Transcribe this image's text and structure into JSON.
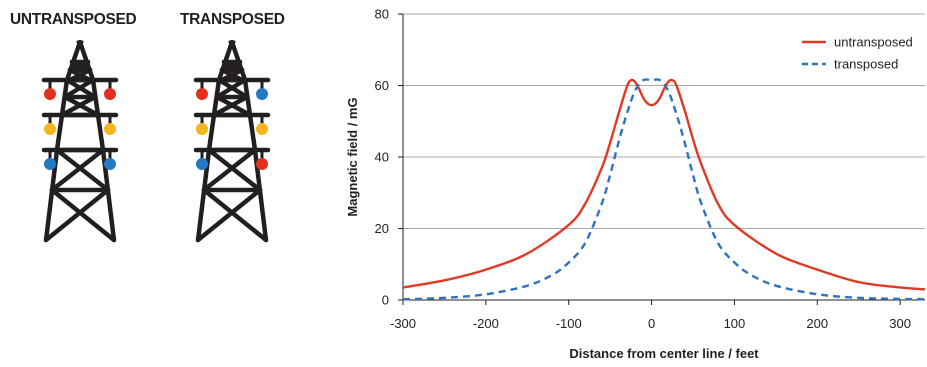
{
  "towers": [
    {
      "title": "UNTRANSPOSED",
      "left": [
        "red",
        "yellow",
        "blue"
      ],
      "right": [
        "red",
        "yellow",
        "blue"
      ]
    },
    {
      "title": "TRANSPOSED",
      "left": [
        "red",
        "yellow",
        "blue"
      ],
      "right": [
        "blue",
        "yellow",
        "red"
      ]
    }
  ],
  "colors": {
    "red": "#e0311f",
    "yellow": "#f5b51b",
    "blue": "#2379c2",
    "tower": "#231f20",
    "untransposed_line": "#e03a24",
    "transposed_line": "#2f72c2",
    "grid": "#a9a9a9"
  },
  "chart_data": {
    "type": "line",
    "xlabel": "Distance from center line / feet",
    "ylabel": "Magnetic field / mG",
    "xlim": [
      -300,
      330
    ],
    "ylim": [
      0,
      80
    ],
    "xticks": [
      -300,
      -200,
      -100,
      0,
      100,
      200,
      300
    ],
    "yticks": [
      0,
      20,
      40,
      60,
      80
    ],
    "grid": "horizontal",
    "legend_position": "top-right",
    "series": [
      {
        "name": "untransposed",
        "style": "solid",
        "x": [
          -300,
          -250,
          -200,
          -150,
          -100,
          -80,
          -60,
          -50,
          -40,
          -30,
          -25,
          -20,
          -15,
          -10,
          -5,
          0,
          5,
          10,
          15,
          20,
          25,
          30,
          40,
          50,
          60,
          80,
          100,
          150,
          200,
          250,
          300,
          330
        ],
        "y": [
          3.5,
          5.5,
          8.5,
          13,
          21,
          27,
          37,
          44,
          52,
          59.5,
          61.5,
          61,
          59,
          56.5,
          55,
          54.5,
          55,
          56.5,
          59,
          61,
          61.5,
          60,
          53,
          45,
          38,
          27,
          21,
          13,
          8.5,
          5,
          3.5,
          3
        ]
      },
      {
        "name": "transposed",
        "style": "dashed",
        "x": [
          -300,
          -250,
          -200,
          -150,
          -120,
          -100,
          -80,
          -60,
          -50,
          -40,
          -30,
          -20,
          -10,
          0,
          10,
          20,
          30,
          40,
          50,
          60,
          80,
          100,
          120,
          150,
          200,
          250,
          300,
          330
        ],
        "y": [
          0.2,
          0.6,
          1.6,
          4,
          7,
          10.5,
          16,
          27,
          35,
          44,
          52,
          58.5,
          61.5,
          61.5,
          61.5,
          58.5,
          52,
          44,
          35,
          27,
          16,
          10.5,
          7,
          4,
          1.6,
          0.6,
          0.3,
          0.2
        ]
      }
    ]
  }
}
